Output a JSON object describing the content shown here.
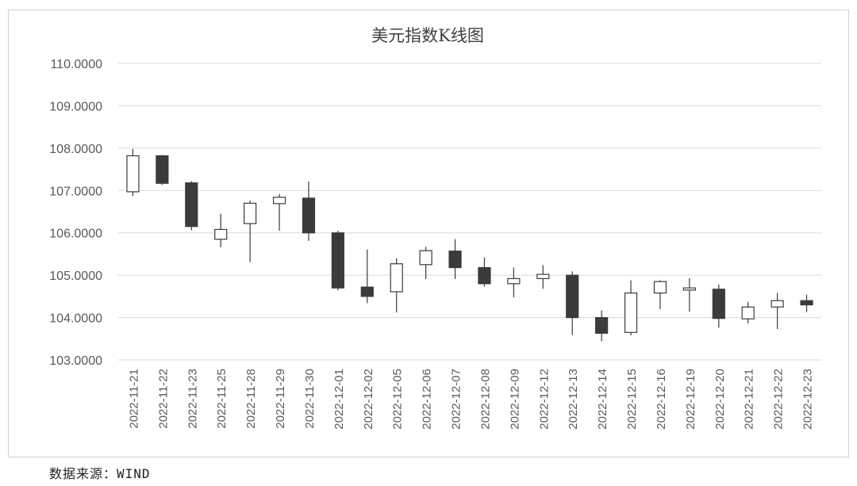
{
  "chart_data": {
    "type": "candlestick",
    "title": "美元指数K线图",
    "xlabel": "",
    "ylabel": "",
    "ylim": [
      103,
      110
    ],
    "yticks": [
      "110.0000",
      "109.0000",
      "108.0000",
      "107.0000",
      "106.0000",
      "105.0000",
      "104.0000",
      "103.0000"
    ],
    "ytick_values": [
      110,
      109,
      108,
      107,
      106,
      105,
      104,
      103
    ],
    "grid": true,
    "categories": [
      "2022-11-21",
      "2022-11-22",
      "2022-11-23",
      "2022-11-25",
      "2022-11-28",
      "2022-11-29",
      "2022-11-30",
      "2022-12-01",
      "2022-12-02",
      "2022-12-05",
      "2022-12-06",
      "2022-12-07",
      "2022-12-08",
      "2022-12-09",
      "2022-12-12",
      "2022-12-13",
      "2022-12-14",
      "2022-12-15",
      "2022-12-16",
      "2022-12-19",
      "2022-12-20",
      "2022-12-21",
      "2022-12-22",
      "2022-12-23"
    ],
    "open": [
      106.97,
      107.82,
      107.18,
      105.85,
      106.22,
      106.69,
      106.82,
      106.0,
      104.72,
      104.61,
      105.25,
      105.57,
      105.18,
      104.8,
      104.92,
      105.0,
      104.0,
      103.65,
      104.58,
      104.65,
      104.67,
      103.97,
      104.25,
      104.4
    ],
    "close": [
      107.82,
      107.17,
      106.15,
      106.08,
      106.7,
      106.84,
      106.0,
      104.7,
      104.5,
      105.27,
      105.58,
      105.18,
      104.8,
      104.92,
      105.02,
      104.0,
      103.63,
      104.58,
      104.85,
      104.7,
      103.98,
      104.25,
      104.4,
      104.3
    ],
    "high": [
      107.98,
      107.84,
      107.22,
      106.45,
      106.76,
      106.92,
      107.21,
      106.05,
      105.61,
      105.4,
      105.67,
      105.85,
      105.42,
      105.18,
      105.24,
      105.09,
      104.17,
      104.88,
      104.88,
      104.93,
      104.78,
      104.37,
      104.58,
      104.54
    ],
    "low": [
      106.87,
      107.13,
      106.06,
      105.66,
      105.31,
      106.05,
      105.81,
      104.64,
      104.34,
      104.12,
      104.91,
      104.91,
      104.73,
      104.48,
      104.68,
      103.59,
      103.44,
      103.58,
      104.2,
      104.14,
      103.76,
      103.86,
      103.73,
      104.13
    ]
  },
  "colors": {
    "bear": "#3b3b3b",
    "bull": "#ffffff",
    "outline": "#3b3b3b",
    "grid": "#d9d9d9",
    "text": "#595959"
  },
  "source": "数据来源：WIND"
}
